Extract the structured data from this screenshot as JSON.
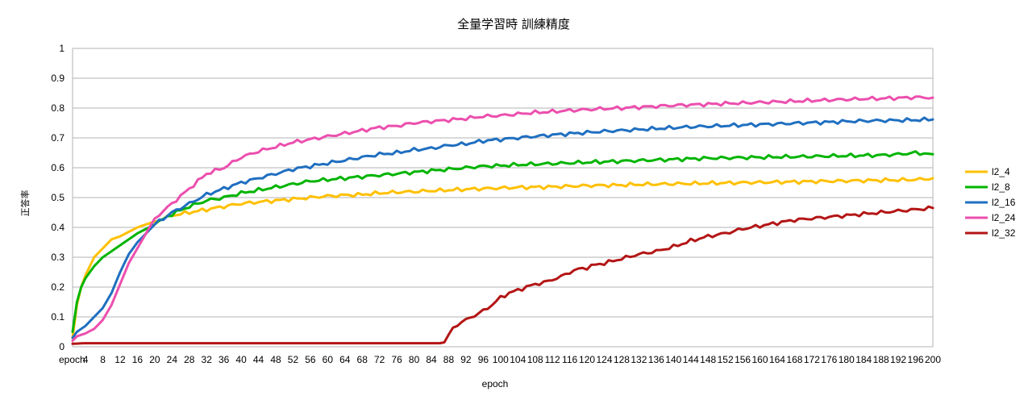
{
  "chart_data": {
    "type": "line",
    "title": "全量学習時 訓練精度",
    "xlabel": "epoch",
    "ylabel": "正答率",
    "ylim": [
      0,
      1
    ],
    "yticks": [
      "0",
      "0.1",
      "0.2",
      "0.3",
      "0.4",
      "0.5",
      "0.6",
      "0.7",
      "0.8",
      "0.9",
      "1"
    ],
    "xlim": [
      1,
      200
    ],
    "xticks": [
      "epoch",
      "4",
      "8",
      "12",
      "16",
      "20",
      "24",
      "28",
      "32",
      "36",
      "40",
      "44",
      "48",
      "52",
      "56",
      "60",
      "64",
      "68",
      "72",
      "76",
      "80",
      "84",
      "88",
      "92",
      "96",
      "100",
      "104",
      "108",
      "112",
      "116",
      "120",
      "124",
      "128",
      "132",
      "136",
      "140",
      "144",
      "148",
      "152",
      "156",
      "160",
      "164",
      "168",
      "172",
      "176",
      "180",
      "184",
      "188",
      "192",
      "196",
      "200"
    ],
    "grid": "horizontal",
    "legend_position": "right",
    "series": [
      {
        "name": "l2_4",
        "color": "#ffc000",
        "points": [
          [
            1,
            0.03
          ],
          [
            2,
            0.14
          ],
          [
            3,
            0.2
          ],
          [
            4,
            0.24
          ],
          [
            5,
            0.27
          ],
          [
            6,
            0.3
          ],
          [
            8,
            0.33
          ],
          [
            10,
            0.36
          ],
          [
            12,
            0.37
          ],
          [
            14,
            0.385
          ],
          [
            16,
            0.4
          ],
          [
            20,
            0.42
          ],
          [
            24,
            0.44
          ],
          [
            28,
            0.45
          ],
          [
            32,
            0.46
          ],
          [
            36,
            0.47
          ],
          [
            40,
            0.48
          ],
          [
            44,
            0.485
          ],
          [
            48,
            0.49
          ],
          [
            52,
            0.495
          ],
          [
            56,
            0.5
          ],
          [
            60,
            0.505
          ],
          [
            64,
            0.508
          ],
          [
            68,
            0.51
          ],
          [
            72,
            0.515
          ],
          [
            76,
            0.518
          ],
          [
            80,
            0.52
          ],
          [
            84,
            0.523
          ],
          [
            88,
            0.525
          ],
          [
            92,
            0.528
          ],
          [
            96,
            0.53
          ],
          [
            100,
            0.532
          ],
          [
            104,
            0.534
          ],
          [
            108,
            0.535
          ],
          [
            112,
            0.536
          ],
          [
            116,
            0.538
          ],
          [
            120,
            0.54
          ],
          [
            124,
            0.541
          ],
          [
            128,
            0.542
          ],
          [
            132,
            0.544
          ],
          [
            136,
            0.545
          ],
          [
            140,
            0.546
          ],
          [
            144,
            0.547
          ],
          [
            148,
            0.548
          ],
          [
            152,
            0.549
          ],
          [
            156,
            0.55
          ],
          [
            160,
            0.551
          ],
          [
            164,
            0.552
          ],
          [
            168,
            0.553
          ],
          [
            172,
            0.554
          ],
          [
            176,
            0.555
          ],
          [
            180,
            0.556
          ],
          [
            184,
            0.557
          ],
          [
            188,
            0.558
          ],
          [
            192,
            0.559
          ],
          [
            196,
            0.56
          ],
          [
            200,
            0.565
          ]
        ]
      },
      {
        "name": "l2_8",
        "color": "#00b400",
        "points": [
          [
            1,
            0.05
          ],
          [
            2,
            0.15
          ],
          [
            3,
            0.2
          ],
          [
            4,
            0.23
          ],
          [
            6,
            0.27
          ],
          [
            8,
            0.3
          ],
          [
            10,
            0.32
          ],
          [
            12,
            0.34
          ],
          [
            14,
            0.36
          ],
          [
            16,
            0.38
          ],
          [
            20,
            0.41
          ],
          [
            24,
            0.445
          ],
          [
            28,
            0.47
          ],
          [
            32,
            0.49
          ],
          [
            36,
            0.5
          ],
          [
            40,
            0.515
          ],
          [
            44,
            0.525
          ],
          [
            48,
            0.535
          ],
          [
            52,
            0.545
          ],
          [
            56,
            0.555
          ],
          [
            60,
            0.56
          ],
          [
            64,
            0.565
          ],
          [
            68,
            0.57
          ],
          [
            72,
            0.575
          ],
          [
            76,
            0.58
          ],
          [
            80,
            0.585
          ],
          [
            84,
            0.59
          ],
          [
            88,
            0.595
          ],
          [
            92,
            0.6
          ],
          [
            96,
            0.605
          ],
          [
            100,
            0.607
          ],
          [
            104,
            0.61
          ],
          [
            108,
            0.612
          ],
          [
            112,
            0.614
          ],
          [
            116,
            0.616
          ],
          [
            120,
            0.618
          ],
          [
            124,
            0.62
          ],
          [
            128,
            0.622
          ],
          [
            132,
            0.624
          ],
          [
            136,
            0.626
          ],
          [
            140,
            0.628
          ],
          [
            144,
            0.63
          ],
          [
            148,
            0.632
          ],
          [
            152,
            0.633
          ],
          [
            156,
            0.634
          ],
          [
            160,
            0.635
          ],
          [
            164,
            0.636
          ],
          [
            168,
            0.637
          ],
          [
            172,
            0.638
          ],
          [
            176,
            0.639
          ],
          [
            180,
            0.64
          ],
          [
            184,
            0.641
          ],
          [
            188,
            0.642
          ],
          [
            192,
            0.645
          ],
          [
            196,
            0.65
          ],
          [
            200,
            0.645
          ]
        ]
      },
      {
        "name": "l2_16",
        "color": "#1f6fc0",
        "points": [
          [
            1,
            0.03
          ],
          [
            2,
            0.05
          ],
          [
            4,
            0.07
          ],
          [
            6,
            0.1
          ],
          [
            8,
            0.13
          ],
          [
            10,
            0.18
          ],
          [
            12,
            0.25
          ],
          [
            14,
            0.31
          ],
          [
            16,
            0.35
          ],
          [
            18,
            0.38
          ],
          [
            20,
            0.41
          ],
          [
            24,
            0.45
          ],
          [
            28,
            0.48
          ],
          [
            32,
            0.51
          ],
          [
            36,
            0.53
          ],
          [
            40,
            0.55
          ],
          [
            44,
            0.565
          ],
          [
            48,
            0.58
          ],
          [
            52,
            0.595
          ],
          [
            56,
            0.605
          ],
          [
            60,
            0.615
          ],
          [
            64,
            0.625
          ],
          [
            68,
            0.635
          ],
          [
            72,
            0.645
          ],
          [
            76,
            0.65
          ],
          [
            80,
            0.66
          ],
          [
            84,
            0.665
          ],
          [
            88,
            0.675
          ],
          [
            92,
            0.68
          ],
          [
            96,
            0.69
          ],
          [
            100,
            0.695
          ],
          [
            104,
            0.7
          ],
          [
            108,
            0.705
          ],
          [
            112,
            0.71
          ],
          [
            116,
            0.714
          ],
          [
            120,
            0.718
          ],
          [
            124,
            0.722
          ],
          [
            128,
            0.725
          ],
          [
            132,
            0.728
          ],
          [
            136,
            0.731
          ],
          [
            140,
            0.734
          ],
          [
            144,
            0.737
          ],
          [
            148,
            0.739
          ],
          [
            152,
            0.741
          ],
          [
            156,
            0.743
          ],
          [
            160,
            0.745
          ],
          [
            164,
            0.747
          ],
          [
            168,
            0.749
          ],
          [
            172,
            0.751
          ],
          [
            176,
            0.753
          ],
          [
            180,
            0.755
          ],
          [
            184,
            0.757
          ],
          [
            188,
            0.758
          ],
          [
            192,
            0.759
          ],
          [
            196,
            0.76
          ],
          [
            200,
            0.762
          ]
        ]
      },
      {
        "name": "l2_24",
        "color": "#ec4fae",
        "points": [
          [
            1,
            0.02
          ],
          [
            2,
            0.035
          ],
          [
            4,
            0.045
          ],
          [
            6,
            0.06
          ],
          [
            8,
            0.09
          ],
          [
            10,
            0.14
          ],
          [
            12,
            0.21
          ],
          [
            14,
            0.28
          ],
          [
            16,
            0.33
          ],
          [
            18,
            0.38
          ],
          [
            20,
            0.43
          ],
          [
            24,
            0.48
          ],
          [
            28,
            0.53
          ],
          [
            32,
            0.58
          ],
          [
            36,
            0.6
          ],
          [
            40,
            0.635
          ],
          [
            44,
            0.655
          ],
          [
            48,
            0.67
          ],
          [
            52,
            0.685
          ],
          [
            56,
            0.695
          ],
          [
            60,
            0.705
          ],
          [
            64,
            0.715
          ],
          [
            68,
            0.725
          ],
          [
            72,
            0.735
          ],
          [
            76,
            0.74
          ],
          [
            80,
            0.75
          ],
          [
            84,
            0.755
          ],
          [
            88,
            0.76
          ],
          [
            92,
            0.765
          ],
          [
            96,
            0.772
          ],
          [
            100,
            0.775
          ],
          [
            104,
            0.78
          ],
          [
            108,
            0.785
          ],
          [
            112,
            0.788
          ],
          [
            116,
            0.792
          ],
          [
            120,
            0.795
          ],
          [
            124,
            0.798
          ],
          [
            128,
            0.8
          ],
          [
            132,
            0.803
          ],
          [
            136,
            0.806
          ],
          [
            140,
            0.809
          ],
          [
            144,
            0.811
          ],
          [
            148,
            0.813
          ],
          [
            152,
            0.815
          ],
          [
            156,
            0.817
          ],
          [
            160,
            0.819
          ],
          [
            164,
            0.821
          ],
          [
            168,
            0.823
          ],
          [
            172,
            0.825
          ],
          [
            176,
            0.827
          ],
          [
            180,
            0.829
          ],
          [
            184,
            0.831
          ],
          [
            188,
            0.832
          ],
          [
            192,
            0.834
          ],
          [
            196,
            0.836
          ],
          [
            200,
            0.835
          ]
        ]
      },
      {
        "name": "l2_32",
        "color": "#b41515",
        "points": [
          [
            1,
            0.01
          ],
          [
            4,
            0.012
          ],
          [
            20,
            0.012
          ],
          [
            40,
            0.012
          ],
          [
            60,
            0.012
          ],
          [
            80,
            0.012
          ],
          [
            86,
            0.012
          ],
          [
            87,
            0.015
          ],
          [
            88,
            0.04
          ],
          [
            89,
            0.06
          ],
          [
            90,
            0.075
          ],
          [
            92,
            0.09
          ],
          [
            94,
            0.105
          ],
          [
            96,
            0.12
          ],
          [
            98,
            0.14
          ],
          [
            100,
            0.165
          ],
          [
            102,
            0.18
          ],
          [
            104,
            0.19
          ],
          [
            106,
            0.2
          ],
          [
            108,
            0.21
          ],
          [
            110,
            0.215
          ],
          [
            112,
            0.225
          ],
          [
            114,
            0.235
          ],
          [
            116,
            0.25
          ],
          [
            118,
            0.26
          ],
          [
            120,
            0.265
          ],
          [
            122,
            0.275
          ],
          [
            124,
            0.28
          ],
          [
            128,
            0.295
          ],
          [
            132,
            0.31
          ],
          [
            136,
            0.32
          ],
          [
            140,
            0.335
          ],
          [
            144,
            0.355
          ],
          [
            148,
            0.37
          ],
          [
            152,
            0.38
          ],
          [
            156,
            0.395
          ],
          [
            160,
            0.405
          ],
          [
            164,
            0.415
          ],
          [
            168,
            0.425
          ],
          [
            172,
            0.43
          ],
          [
            176,
            0.435
          ],
          [
            180,
            0.44
          ],
          [
            184,
            0.445
          ],
          [
            188,
            0.45
          ],
          [
            192,
            0.455
          ],
          [
            196,
            0.46
          ],
          [
            200,
            0.465
          ]
        ]
      }
    ]
  }
}
